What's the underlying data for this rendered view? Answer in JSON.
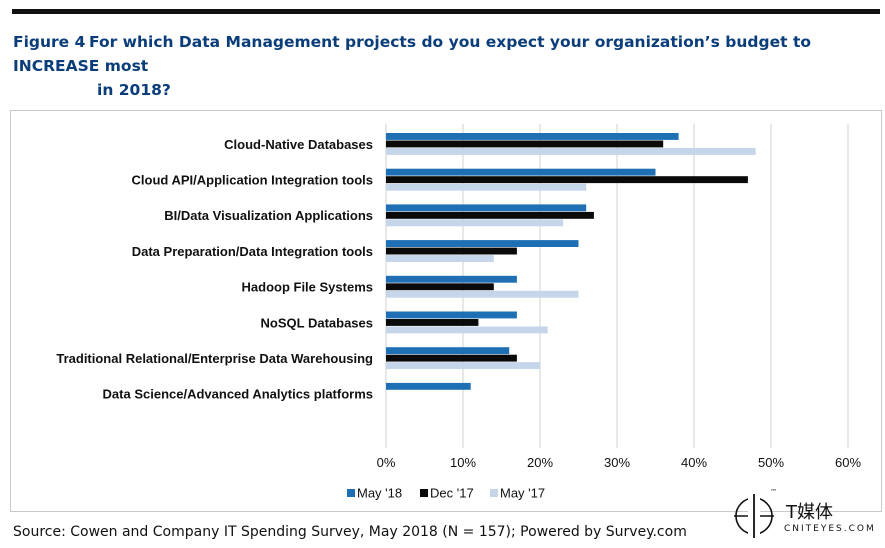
{
  "title": {
    "number": "Figure 4",
    "line1": "For which Data Management projects do you expect your organization’s budget to INCREASE most",
    "line2": "in 2018?"
  },
  "source": "Source: Cowen and Company IT Spending Survey, May 2018 (N = 157); Powered by Survey.com",
  "logo": {
    "chinese": "T媒体",
    "latin": "CNITEYES.COM",
    "tm": "™"
  },
  "colors": {
    "may18": "#1f6fb5",
    "dec17": "#0a0a0a",
    "may17": "#c5d5ea",
    "grid": "#d0d0d0"
  },
  "chart_data": {
    "type": "bar",
    "orientation": "horizontal",
    "categories": [
      "Cloud-Native Databases",
      "Cloud API/Application Integration tools",
      "BI/Data Visualization Applications",
      "Data Preparation/Data Integration tools",
      "Hadoop File Systems",
      "NoSQL Databases",
      "Traditional Relational/Enterprise Data Warehousing",
      "Data Science/Advanced Analytics platforms"
    ],
    "series": [
      {
        "name": "May '18",
        "values": [
          38,
          35,
          26,
          25,
          17,
          17,
          16,
          11
        ]
      },
      {
        "name": "Dec '17",
        "values": [
          36,
          47,
          27,
          17,
          14,
          12,
          17,
          null
        ]
      },
      {
        "name": "May '17",
        "values": [
          48,
          26,
          23,
          14,
          25,
          21,
          20,
          null
        ]
      }
    ],
    "xlim": [
      0,
      60
    ],
    "x_ticks": [
      "0%",
      "10%",
      "20%",
      "30%",
      "40%",
      "50%",
      "60%"
    ],
    "grid": true,
    "legend_position": "bottom-left"
  }
}
